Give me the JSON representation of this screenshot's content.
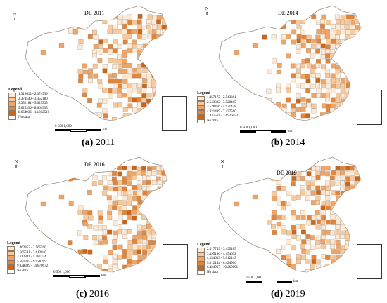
{
  "panels": [
    {
      "title": "DE 2011",
      "caption_letter": "(a)",
      "caption_year": "2011",
      "legend_title": "Legend",
      "legend": [
        "1.312612 - 2.374539",
        "2.374540 - 3.352180",
        "3.352181 - 5.025335",
        "5.025336 - 8.664935",
        "8.664936 - 14.302510",
        "No data"
      ],
      "scale_label": "0    500    1,000",
      "scale_unit": "km",
      "north": "N"
    },
    {
      "title": "DE 2014",
      "caption_letter": "(b)",
      "caption_year": "2014",
      "legend_title": "Legend",
      "legend": [
        "1.457172 - 2.543381",
        "2.543382 - 3.528415",
        "3.528416 - 4.921438",
        "4.921439 - 7.437560",
        "7.437561 - 13.926052",
        "No data"
      ],
      "scale_label": "0    500    1,000",
      "scale_unit": "km",
      "north": "N"
    },
    {
      "title": "DE 2016",
      "caption_letter": "(c)",
      "caption_year": "2016",
      "legend_title": "Legend",
      "legend": [
        "1.462453 - 2.565590",
        "2.565591 - 3.612840",
        "3.612841 - 5.581334",
        "5.581335 - 9.928399",
        "9.928399 - 14.870972",
        "No data"
      ],
      "scale_label": "0    500    1,000",
      "scale_unit": "km",
      "north": "N"
    },
    {
      "title": "DE 2019",
      "caption_letter": "(d)",
      "caption_year": "2019",
      "legend_title": "Legend",
      "legend": [
        "2.617739 - 3.495185",
        "3.495186 - 4.154632",
        "4.154633 - 5.012143",
        "5.012144 - 6.424966",
        "6.424967 - 10.260091",
        "No data"
      ],
      "scale_label": "0    500    1,000",
      "scale_unit": "km",
      "north": "N"
    }
  ],
  "colors": {
    "class1": "#fde9d4",
    "class2": "#f9c99a",
    "class3": "#f0a566",
    "class4": "#e2843a",
    "class5": "#c8671c",
    "nodata": "#ffffff",
    "outline": "#9b8c7c"
  }
}
